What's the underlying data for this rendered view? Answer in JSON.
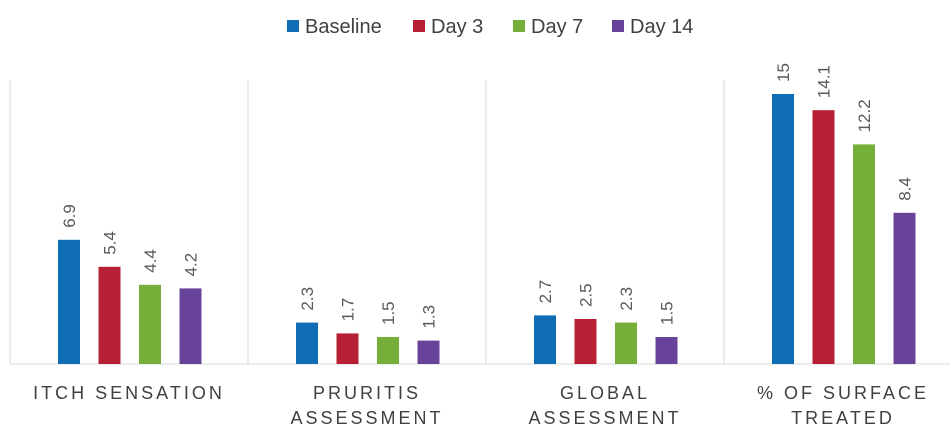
{
  "chart_data": {
    "type": "bar",
    "categories": [
      [
        "ITCH SENSATION"
      ],
      [
        "PRURITIS",
        "ASSESSMENT"
      ],
      [
        "GLOBAL",
        "ASSESSMENT"
      ],
      [
        "% OF SURFACE",
        "TREATED"
      ]
    ],
    "series": [
      {
        "name": "Baseline",
        "color": "#0F6DB5",
        "values": [
          6.9,
          2.3,
          2.7,
          15
        ]
      },
      {
        "name": "Day 3",
        "color": "#B72034",
        "values": [
          5.4,
          1.7,
          2.5,
          14.1
        ]
      },
      {
        "name": "Day 7",
        "color": "#76AE3A",
        "values": [
          4.4,
          1.5,
          2.3,
          12.2
        ]
      },
      {
        "name": "Day 14",
        "color": "#67449A",
        "values": [
          4.2,
          1.3,
          1.5,
          8.4
        ]
      }
    ],
    "data_labels": [
      [
        "6.9",
        "2.3",
        "2.7",
        "15"
      ],
      [
        "5.4",
        "1.7",
        "2.5",
        "14.1"
      ],
      [
        "4.4",
        "1.5",
        "2.3",
        "12.2"
      ],
      [
        "4.2",
        "1.3",
        "1.5",
        "8.4"
      ]
    ],
    "ylim": [
      0,
      17
    ],
    "legend_position": "top",
    "grid": false,
    "separators": true
  }
}
